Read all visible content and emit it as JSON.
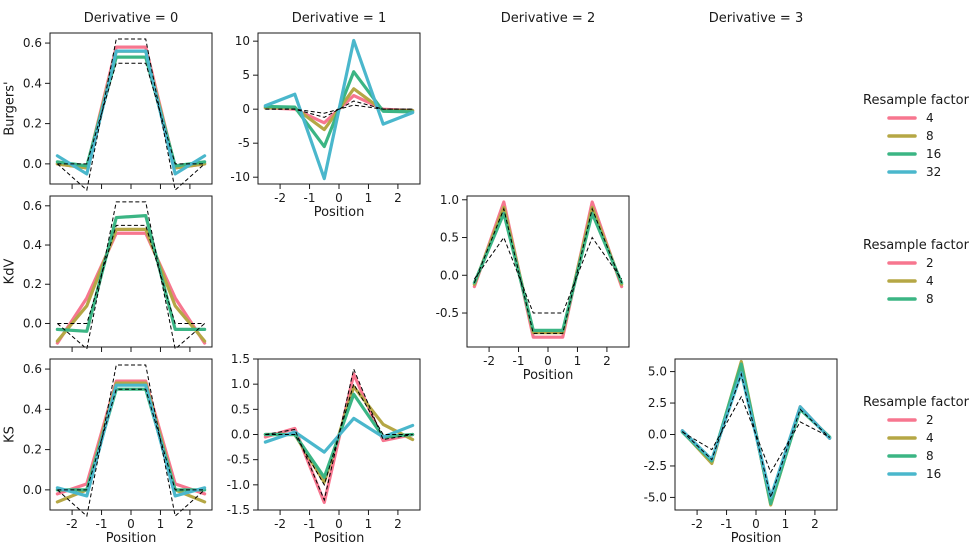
{
  "colors": {
    "c2": "#f7768f",
    "c4": "#b5a745",
    "c8": "#3bb584",
    "c16": "#4ab7cc",
    "c32": "#4ab7cc",
    "exact": "#000000"
  },
  "chart_data": [
    {
      "type": "line",
      "row": "Burgers'",
      "derivative": 0,
      "title": "Derivative = 0",
      "ylabel": "Burgers'",
      "xlabel": "",
      "xlim": [
        -2.75,
        2.75
      ],
      "ylim": [
        -0.1,
        0.65
      ],
      "xticks": [
        -2,
        -1,
        0,
        1,
        2
      ],
      "xtick_labels": [
        "",
        "",
        "",
        "",
        ""
      ],
      "yticks": [
        0.0,
        0.2,
        0.4,
        0.6
      ],
      "ytick_labels": [
        "0.0",
        "0.2",
        "0.4",
        "0.6"
      ],
      "x": [
        -2.5,
        -1.5,
        -0.5,
        0.5,
        1.5,
        2.5
      ],
      "series": [
        {
          "name": "4",
          "color": "#f7768f",
          "values": [
            0.0,
            -0.02,
            0.58,
            0.58,
            -0.02,
            0.0
          ]
        },
        {
          "name": "8",
          "color": "#b5a745",
          "values": [
            0.0,
            -0.02,
            0.56,
            0.56,
            -0.02,
            0.0
          ]
        },
        {
          "name": "16",
          "color": "#3bb584",
          "values": [
            0.01,
            -0.01,
            0.53,
            0.53,
            -0.01,
            0.01
          ]
        },
        {
          "name": "32",
          "color": "#4ab7cc",
          "values": [
            0.04,
            -0.05,
            0.56,
            0.56,
            -0.05,
            0.04
          ]
        }
      ],
      "reference": [
        {
          "values": [
            0.0,
            -0.13,
            0.62,
            0.62,
            -0.13,
            0.0
          ]
        },
        {
          "values": [
            0.0,
            0.0,
            0.5,
            0.5,
            0.0,
            0.0
          ]
        }
      ]
    },
    {
      "type": "line",
      "row": "Burgers'",
      "derivative": 1,
      "title": "Derivative = 1",
      "ylabel": "",
      "xlabel": "Position",
      "xlim": [
        -2.75,
        2.75
      ],
      "ylim": [
        -11.0,
        11.2
      ],
      "xticks": [
        -2,
        -1,
        0,
        1,
        2
      ],
      "xtick_labels": [
        "-2",
        "-1",
        "0",
        "1",
        "2"
      ],
      "yticks": [
        -10,
        -5,
        0,
        5,
        10
      ],
      "ytick_labels": [
        "-10",
        "-5",
        "0",
        "5",
        "10"
      ],
      "x": [
        -2.5,
        -1.5,
        -0.5,
        0.5,
        1.5,
        2.5
      ],
      "series": [
        {
          "name": "4",
          "color": "#f7768f",
          "values": [
            0.2,
            0.0,
            -2.0,
            2.0,
            0.0,
            -0.2
          ]
        },
        {
          "name": "8",
          "color": "#b5a745",
          "values": [
            0.2,
            0.2,
            -3.0,
            3.0,
            -0.2,
            -0.2
          ]
        },
        {
          "name": "16",
          "color": "#3bb584",
          "values": [
            0.4,
            0.3,
            -5.5,
            5.5,
            -0.3,
            -0.4
          ]
        },
        {
          "name": "32",
          "color": "#4ab7cc",
          "values": [
            0.5,
            2.2,
            -10.2,
            10.1,
            -2.2,
            -0.5
          ]
        }
      ],
      "reference": [
        {
          "values": [
            0.0,
            0.0,
            -1.2,
            1.2,
            0.0,
            0.0
          ]
        },
        {
          "values": [
            0.0,
            0.0,
            -0.6,
            0.6,
            0.0,
            0.0
          ]
        }
      ]
    },
    {
      "type": "line",
      "row": "KdV",
      "derivative": 0,
      "title": "",
      "ylabel": "KdV",
      "xlabel": "",
      "xlim": [
        -2.75,
        2.75
      ],
      "ylim": [
        -0.12,
        0.65
      ],
      "xticks": [
        -2,
        -1,
        0,
        1,
        2
      ],
      "xtick_labels": [
        "",
        "",
        "",
        "",
        ""
      ],
      "yticks": [
        0.0,
        0.2,
        0.4,
        0.6
      ],
      "ytick_labels": [
        "0.0",
        "0.2",
        "0.4",
        "0.6"
      ],
      "x": [
        -2.5,
        -1.5,
        -0.5,
        0.5,
        1.5,
        2.5
      ],
      "series": [
        {
          "name": "2",
          "color": "#f7768f",
          "values": [
            -0.1,
            0.13,
            0.46,
            0.46,
            0.13,
            -0.1
          ]
        },
        {
          "name": "4",
          "color": "#b5a745",
          "values": [
            -0.09,
            0.09,
            0.48,
            0.48,
            0.09,
            -0.09
          ]
        },
        {
          "name": "8",
          "color": "#3bb584",
          "values": [
            -0.03,
            -0.04,
            0.54,
            0.55,
            -0.03,
            -0.03
          ]
        }
      ],
      "reference": [
        {
          "values": [
            0.0,
            -0.13,
            0.62,
            0.62,
            -0.13,
            0.0
          ]
        },
        {
          "values": [
            0.0,
            0.0,
            0.5,
            0.5,
            0.0,
            0.0
          ]
        }
      ]
    },
    {
      "type": "line",
      "row": "KdV",
      "derivative": 2,
      "title": "Derivative = 2",
      "ylabel": "",
      "xlabel": "Position",
      "xlim": [
        -2.75,
        2.75
      ],
      "ylim": [
        -0.95,
        1.05
      ],
      "xticks": [
        -2,
        -1,
        0,
        1,
        2
      ],
      "xtick_labels": [
        "-2",
        "-1",
        "0",
        "1",
        "2"
      ],
      "yticks": [
        -0.5,
        0.0,
        0.5,
        1.0
      ],
      "ytick_labels": [
        "-0.5",
        "0.0",
        "0.5",
        "1.0"
      ],
      "x": [
        -2.5,
        -1.5,
        -0.5,
        0.5,
        1.5,
        2.5
      ],
      "series": [
        {
          "name": "2",
          "color": "#f7768f",
          "values": [
            -0.15,
            0.97,
            -0.82,
            -0.82,
            0.97,
            -0.15
          ]
        },
        {
          "name": "4",
          "color": "#b5a745",
          "values": [
            -0.12,
            0.9,
            -0.76,
            -0.76,
            0.9,
            -0.12
          ]
        },
        {
          "name": "8",
          "color": "#3bb584",
          "values": [
            -0.1,
            0.82,
            -0.73,
            -0.73,
            0.82,
            -0.1
          ]
        }
      ],
      "reference": [
        {
          "values": [
            -0.05,
            0.5,
            -0.5,
            -0.5,
            0.5,
            -0.05
          ]
        },
        {
          "values": [
            -0.1,
            0.88,
            -0.77,
            -0.77,
            0.88,
            -0.1
          ]
        }
      ]
    },
    {
      "type": "line",
      "row": "KS",
      "derivative": 0,
      "title": "",
      "ylabel": "KS",
      "xlabel": "Position",
      "xlim": [
        -2.75,
        2.75
      ],
      "ylim": [
        -0.1,
        0.65
      ],
      "xticks": [
        -2,
        -1,
        0,
        1,
        2
      ],
      "xtick_labels": [
        "-2",
        "-1",
        "0",
        "1",
        "2"
      ],
      "yticks": [
        0.0,
        0.2,
        0.4,
        0.6
      ],
      "ytick_labels": [
        "0.0",
        "0.2",
        "0.4",
        "0.6"
      ],
      "x": [
        -2.5,
        -1.5,
        -0.5,
        0.5,
        1.5,
        2.5
      ],
      "series": [
        {
          "name": "2",
          "color": "#f7768f",
          "values": [
            -0.02,
            0.03,
            0.54,
            0.54,
            0.03,
            -0.02
          ]
        },
        {
          "name": "4",
          "color": "#b5a745",
          "values": [
            -0.06,
            0.0,
            0.53,
            0.53,
            0.0,
            -0.06
          ]
        },
        {
          "name": "8",
          "color": "#3bb584",
          "values": [
            0.0,
            0.0,
            0.5,
            0.5,
            0.0,
            0.0
          ]
        },
        {
          "name": "16",
          "color": "#4ab7cc",
          "values": [
            0.01,
            -0.03,
            0.52,
            0.52,
            -0.03,
            0.01
          ]
        }
      ],
      "reference": [
        {
          "values": [
            0.0,
            -0.13,
            0.62,
            0.62,
            -0.13,
            0.0
          ]
        },
        {
          "values": [
            0.0,
            0.0,
            0.5,
            0.5,
            0.0,
            0.0
          ]
        }
      ]
    },
    {
      "type": "line",
      "row": "KS",
      "derivative": 1,
      "title": "",
      "ylabel": "",
      "xlabel": "Position",
      "xlim": [
        -2.75,
        2.75
      ],
      "ylim": [
        -1.5,
        1.5
      ],
      "xticks": [
        -2,
        -1,
        0,
        1,
        2
      ],
      "xtick_labels": [
        "-2",
        "-1",
        "0",
        "1",
        "2"
      ],
      "yticks": [
        -1.5,
        -1.0,
        -0.5,
        0.0,
        0.5,
        1.0,
        1.5
      ],
      "ytick_labels": [
        "-1.5",
        "-1.0",
        "-0.5",
        "0.0",
        "0.5",
        "1.0",
        "1.5"
      ],
      "x": [
        -2.5,
        -1.5,
        -0.5,
        0.5,
        1.5,
        2.5
      ],
      "series": [
        {
          "name": "2",
          "color": "#f7768f",
          "values": [
            -0.05,
            0.12,
            -1.35,
            1.2,
            -0.12,
            0.0
          ]
        },
        {
          "name": "4",
          "color": "#b5a745",
          "values": [
            0.0,
            0.0,
            -0.95,
            0.95,
            0.2,
            -0.1
          ]
        },
        {
          "name": "8",
          "color": "#3bb584",
          "values": [
            0.0,
            0.0,
            -0.85,
            0.8,
            -0.05,
            0.0
          ]
        },
        {
          "name": "16",
          "color": "#4ab7cc",
          "values": [
            -0.15,
            0.05,
            -0.35,
            0.32,
            -0.05,
            0.18
          ]
        }
      ],
      "reference": [
        {
          "values": [
            0.0,
            0.1,
            -1.3,
            1.3,
            -0.1,
            0.0
          ]
        },
        {
          "values": [
            0.0,
            0.0,
            -1.0,
            1.0,
            0.0,
            0.0
          ]
        }
      ]
    },
    {
      "type": "line",
      "row": "KS",
      "derivative": 3,
      "title": "Derivative = 3",
      "ylabel": "",
      "xlabel": "Position",
      "xlim": [
        -2.75,
        2.75
      ],
      "ylim": [
        -6.0,
        6.0
      ],
      "xticks": [
        -2,
        -1,
        0,
        1,
        2
      ],
      "xtick_labels": [
        "-2",
        "-1",
        "0",
        "1",
        "2"
      ],
      "yticks": [
        -5.0,
        -2.5,
        0.0,
        2.5,
        5.0
      ],
      "ytick_labels": [
        "-5.0",
        "-2.5",
        "0.0",
        "2.5",
        "5.0"
      ],
      "x": [
        -2.5,
        -1.5,
        -0.5,
        0.5,
        1.5,
        2.5
      ],
      "series": [
        {
          "name": "2",
          "color": "#f7768f",
          "values": [
            0.3,
            -2.2,
            5.5,
            -5.4,
            2.2,
            -0.3
          ]
        },
        {
          "name": "4",
          "color": "#b5a745",
          "values": [
            0.25,
            -2.3,
            5.8,
            -5.6,
            2.1,
            -0.25
          ]
        },
        {
          "name": "8",
          "color": "#3bb584",
          "values": [
            0.2,
            -2.1,
            5.6,
            -5.5,
            2.0,
            -0.2
          ]
        },
        {
          "name": "16",
          "color": "#4ab7cc",
          "values": [
            0.3,
            -2.0,
            4.9,
            -5.0,
            2.2,
            -0.3
          ]
        }
      ],
      "reference": [
        {
          "values": [
            0.2,
            -1.2,
            3.0,
            -3.0,
            1.0,
            -0.2
          ]
        },
        {
          "values": [
            0.25,
            -2.0,
            4.8,
            -5.0,
            2.0,
            -0.25
          ]
        }
      ]
    }
  ],
  "legends": [
    {
      "title": "Resample factor",
      "items": [
        {
          "label": "4",
          "color": "#f7768f"
        },
        {
          "label": "8",
          "color": "#b5a745"
        },
        {
          "label": "16",
          "color": "#3bb584"
        },
        {
          "label": "32",
          "color": "#4ab7cc"
        }
      ]
    },
    {
      "title": "Resample factor",
      "items": [
        {
          "label": "2",
          "color": "#f7768f"
        },
        {
          "label": "4",
          "color": "#b5a745"
        },
        {
          "label": "8",
          "color": "#3bb584"
        }
      ]
    },
    {
      "title": "Resample factor",
      "items": [
        {
          "label": "2",
          "color": "#f7768f"
        },
        {
          "label": "4",
          "color": "#b5a745"
        },
        {
          "label": "8",
          "color": "#3bb584"
        },
        {
          "label": "16",
          "color": "#4ab7cc"
        }
      ]
    }
  ]
}
